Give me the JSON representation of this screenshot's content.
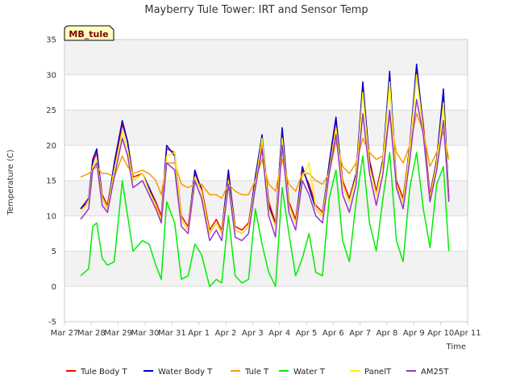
{
  "chart_data": {
    "type": "line",
    "title": "Mayberry Tule Tower: IRT and Sensor Temp",
    "xlabel": "Time",
    "ylabel": "Temperature (C)",
    "annotation": "MB_tule",
    "ylim": [
      -5,
      35
    ],
    "yticks": [
      -5,
      0,
      5,
      10,
      15,
      20,
      25,
      30,
      35
    ],
    "xlim": [
      0,
      15
    ],
    "xticks": [
      0,
      1,
      2,
      3,
      4,
      5,
      6,
      7,
      8,
      9,
      10,
      11,
      12,
      13,
      14,
      15
    ],
    "xtick_labels": [
      "Mar 27",
      "Mar 28",
      "Mar 29",
      "Mar 30",
      "Mar 31",
      "Apr 1",
      "Apr 2",
      "Apr 3",
      "Apr 4",
      "Apr 5",
      "Apr 6",
      "Apr 7",
      "Apr 8",
      "Apr 9",
      "Apr 10",
      "Apr 11"
    ],
    "grid": true,
    "legend_position": "bottom",
    "x": [
      0.6,
      0.9,
      1.05,
      1.2,
      1.4,
      1.6,
      1.85,
      2.15,
      2.35,
      2.55,
      2.9,
      3.15,
      3.4,
      3.6,
      3.8,
      4.1,
      4.35,
      4.6,
      4.85,
      5.1,
      5.4,
      5.65,
      5.85,
      6.1,
      6.35,
      6.6,
      6.85,
      7.1,
      7.35,
      7.6,
      7.85,
      8.1,
      8.35,
      8.6,
      8.85,
      9.1,
      9.35,
      9.6,
      9.85,
      10.1,
      10.35,
      10.6,
      10.85,
      11.1,
      11.35,
      11.6,
      11.85,
      12.1,
      12.35,
      12.6,
      12.85,
      13.1,
      13.35,
      13.6,
      13.85,
      14.1,
      14.3
    ],
    "series": [
      {
        "name": "Tule Body T",
        "color": "#ff0000",
        "values": [
          11.0,
          12.0,
          17.5,
          19.0,
          13.0,
          11.5,
          17.0,
          23.0,
          20.5,
          15.5,
          16.0,
          14.0,
          12.0,
          10.0,
          19.5,
          19.0,
          10.0,
          8.5,
          16.0,
          14.0,
          8.0,
          9.5,
          8.0,
          16.0,
          8.5,
          8.0,
          9.0,
          15.0,
          20.5,
          12.0,
          9.0,
          22.0,
          12.0,
          9.5,
          16.5,
          14.5,
          11.5,
          10.5,
          17.0,
          23.5,
          15.0,
          12.5,
          16.0,
          28.5,
          18.0,
          13.5,
          18.0,
          29.5,
          15.0,
          12.5,
          20.0,
          30.5,
          23.0,
          13.0,
          18.0,
          27.5,
          12.5
        ]
      },
      {
        "name": "Water Body T",
        "color": "#0000cc",
        "values": [
          11.0,
          12.5,
          18.0,
          19.5,
          12.5,
          11.0,
          17.5,
          23.5,
          20.5,
          15.0,
          16.0,
          14.0,
          11.5,
          9.5,
          20.0,
          18.5,
          9.5,
          8.0,
          16.5,
          13.5,
          7.5,
          9.0,
          7.5,
          16.5,
          8.0,
          7.5,
          8.5,
          15.5,
          21.5,
          11.5,
          8.5,
          22.5,
          11.5,
          9.0,
          17.0,
          14.0,
          11.0,
          10.0,
          17.5,
          24.0,
          14.5,
          12.0,
          16.0,
          29.0,
          17.5,
          13.0,
          18.0,
          30.5,
          14.5,
          12.0,
          20.0,
          31.5,
          22.5,
          12.5,
          18.0,
          28.0,
          12.0
        ]
      },
      {
        "name": "Tule T",
        "color": "#ff9900",
        "values": [
          15.5,
          16.0,
          16.5,
          17.0,
          16.0,
          16.0,
          15.5,
          18.5,
          17.0,
          16.0,
          16.5,
          16.0,
          15.0,
          13.0,
          17.5,
          17.5,
          14.5,
          14.0,
          14.5,
          14.5,
          13.0,
          13.0,
          12.5,
          14.5,
          13.5,
          13.0,
          13.0,
          15.0,
          18.0,
          14.5,
          13.5,
          18.0,
          14.5,
          13.5,
          16.0,
          16.0,
          15.0,
          14.5,
          16.0,
          20.5,
          17.0,
          16.0,
          17.5,
          21.0,
          19.0,
          18.0,
          18.5,
          24.0,
          19.0,
          17.5,
          20.0,
          24.5,
          22.0,
          17.0,
          19.0,
          22.0,
          18.0
        ]
      },
      {
        "name": "Water T",
        "color": "#00ee00",
        "values": [
          1.5,
          2.5,
          8.5,
          9.0,
          4.0,
          3.0,
          3.5,
          15.0,
          10.0,
          5.0,
          6.5,
          6.0,
          3.0,
          1.0,
          12.0,
          9.0,
          1.0,
          1.5,
          6.0,
          4.5,
          0.0,
          1.0,
          0.5,
          10.0,
          1.5,
          0.5,
          1.0,
          11.0,
          6.0,
          2.0,
          0.0,
          14.0,
          7.5,
          1.5,
          4.0,
          7.5,
          2.0,
          1.5,
          12.5,
          16.5,
          6.5,
          3.5,
          12.0,
          18.5,
          9.0,
          5.0,
          12.5,
          19.0,
          6.5,
          3.5,
          14.0,
          19.0,
          11.0,
          5.5,
          14.5,
          17.0,
          5.0
        ]
      },
      {
        "name": "PanelT",
        "color": "#ffee00",
        "values": [
          10.5,
          12.0,
          17.0,
          18.0,
          12.5,
          11.0,
          16.5,
          22.0,
          19.5,
          15.0,
          16.0,
          13.5,
          11.5,
          9.5,
          18.5,
          19.0,
          9.5,
          8.0,
          15.5,
          13.5,
          7.5,
          9.0,
          7.5,
          15.0,
          8.0,
          7.5,
          8.5,
          14.5,
          21.0,
          11.0,
          8.5,
          21.0,
          11.5,
          9.0,
          15.5,
          17.5,
          11.0,
          10.0,
          16.5,
          22.5,
          14.5,
          12.0,
          15.5,
          27.5,
          17.0,
          13.0,
          17.5,
          29.0,
          14.5,
          12.0,
          19.5,
          30.0,
          22.0,
          12.5,
          17.5,
          26.0,
          12.0
        ]
      },
      {
        "name": "AM25T",
        "color": "#9933cc",
        "values": [
          9.5,
          11.0,
          16.5,
          17.5,
          11.5,
          10.5,
          15.5,
          21.0,
          18.5,
          14.0,
          15.0,
          13.0,
          11.0,
          9.0,
          17.5,
          16.5,
          8.5,
          7.5,
          15.0,
          12.5,
          6.5,
          8.0,
          6.5,
          14.5,
          7.0,
          6.5,
          7.5,
          14.0,
          19.5,
          10.0,
          7.0,
          20.0,
          10.5,
          8.0,
          15.0,
          13.0,
          10.0,
          9.0,
          16.0,
          21.5,
          13.0,
          10.5,
          14.5,
          24.5,
          16.0,
          11.5,
          16.0,
          25.0,
          14.0,
          11.0,
          18.0,
          26.5,
          21.5,
          12.0,
          16.5,
          23.5,
          12.0
        ]
      }
    ]
  }
}
